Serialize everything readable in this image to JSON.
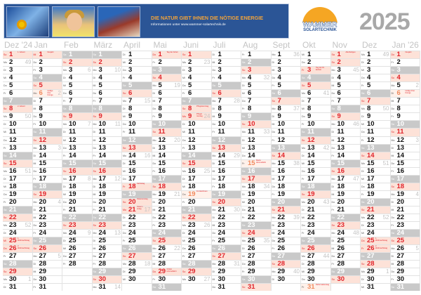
{
  "banner": {
    "slogan": "DIE NATUR GIBT IHNEN DIE NÖTIGE ENERGIE",
    "info": "Informationen unter www.wammer-solartechnik.de"
  },
  "logo": {
    "name": "WAMMER",
    "subtitle": "SOLARTECHNIK"
  },
  "year": "2025",
  "colors": {
    "saturday": "#c9c9c9",
    "sunday_bg": "#fde2d8",
    "holiday_red": "#e0242b",
    "banner": "#2b5596",
    "logo_orange": "#f5a623",
    "year_gray": "#a8a8a8"
  },
  "weekdays": [
    "So",
    "Mo",
    "Di",
    "Mi",
    "Do",
    "Fr",
    "Sa"
  ],
  "months": [
    {
      "label": "Dez '24",
      "year": 2024,
      "month": 12
    },
    {
      "label": "Jan",
      "year": 2025,
      "month": 1
    },
    {
      "label": "Feb",
      "year": 2025,
      "month": 2
    },
    {
      "label": "März",
      "year": 2025,
      "month": 3
    },
    {
      "label": "April",
      "year": 2025,
      "month": 4
    },
    {
      "label": "Mai",
      "year": 2025,
      "month": 5
    },
    {
      "label": "Juni",
      "year": 2025,
      "month": 6
    },
    {
      "label": "Juli",
      "year": 2025,
      "month": 7
    },
    {
      "label": "Aug",
      "year": 2025,
      "month": 8
    },
    {
      "label": "Sept",
      "year": 2025,
      "month": 9
    },
    {
      "label": "Okt",
      "year": 2025,
      "month": 10
    },
    {
      "label": "Nov",
      "year": 2025,
      "month": 11
    },
    {
      "label": "Dez",
      "year": 2025,
      "month": 12
    },
    {
      "label": "Jan '26",
      "year": 2026,
      "month": 1
    }
  ],
  "holidays": {
    "2024-12-01": {
      "name": "1. Advent",
      "type": "so"
    },
    "2024-12-08": {
      "name": "2. Advent",
      "type": "so"
    },
    "2024-12-25": {
      "name": "1. Weihnachtstag",
      "type": "so"
    },
    "2024-12-26": {
      "name": "2. Weihnachtstag",
      "type": "so"
    },
    "2025-01-01": {
      "name": "Neujahr",
      "type": "so"
    },
    "2025-01-06": {
      "name": "Heilige Drei Könige",
      "type": "lt"
    },
    "2025-04-18": {
      "name": "Karfreitag",
      "type": "so"
    },
    "2025-04-20": {
      "name": "Ostersonntag",
      "type": "so"
    },
    "2025-04-21": {
      "name": "Ostermontag",
      "type": "so"
    },
    "2025-05-01": {
      "name": "Tag der Arbeit",
      "type": "so"
    },
    "2025-05-29": {
      "name": "Christi Himmelfahrt",
      "type": "so"
    },
    "2025-06-08": {
      "name": "Pfingstsonntag",
      "type": "so"
    },
    "2025-06-09": {
      "name": "Pfingstmontag",
      "type": "so"
    },
    "2025-06-19": {
      "name": "Fronleichnam",
      "type": "lt"
    },
    "2025-08-15": {
      "name": "Mariä Himmelfahrt",
      "type": "lt"
    },
    "2025-10-03": {
      "name": "Tag der Dt. Einheit",
      "type": "so"
    },
    "2025-10-31": {
      "name": "Reformationstag",
      "type": "lt"
    },
    "2025-11-01": {
      "name": "Allerheiligen",
      "type": "so"
    },
    "2025-12-25": {
      "name": "1. Weihnachtstag",
      "type": "so"
    },
    "2025-12-26": {
      "name": "2. Weihnachtstag",
      "type": "so"
    },
    "2026-01-01": {
      "name": "Neujahr",
      "type": "so"
    },
    "2026-01-06": {
      "name": "Heilige Drei Könige",
      "type": "lt"
    }
  }
}
